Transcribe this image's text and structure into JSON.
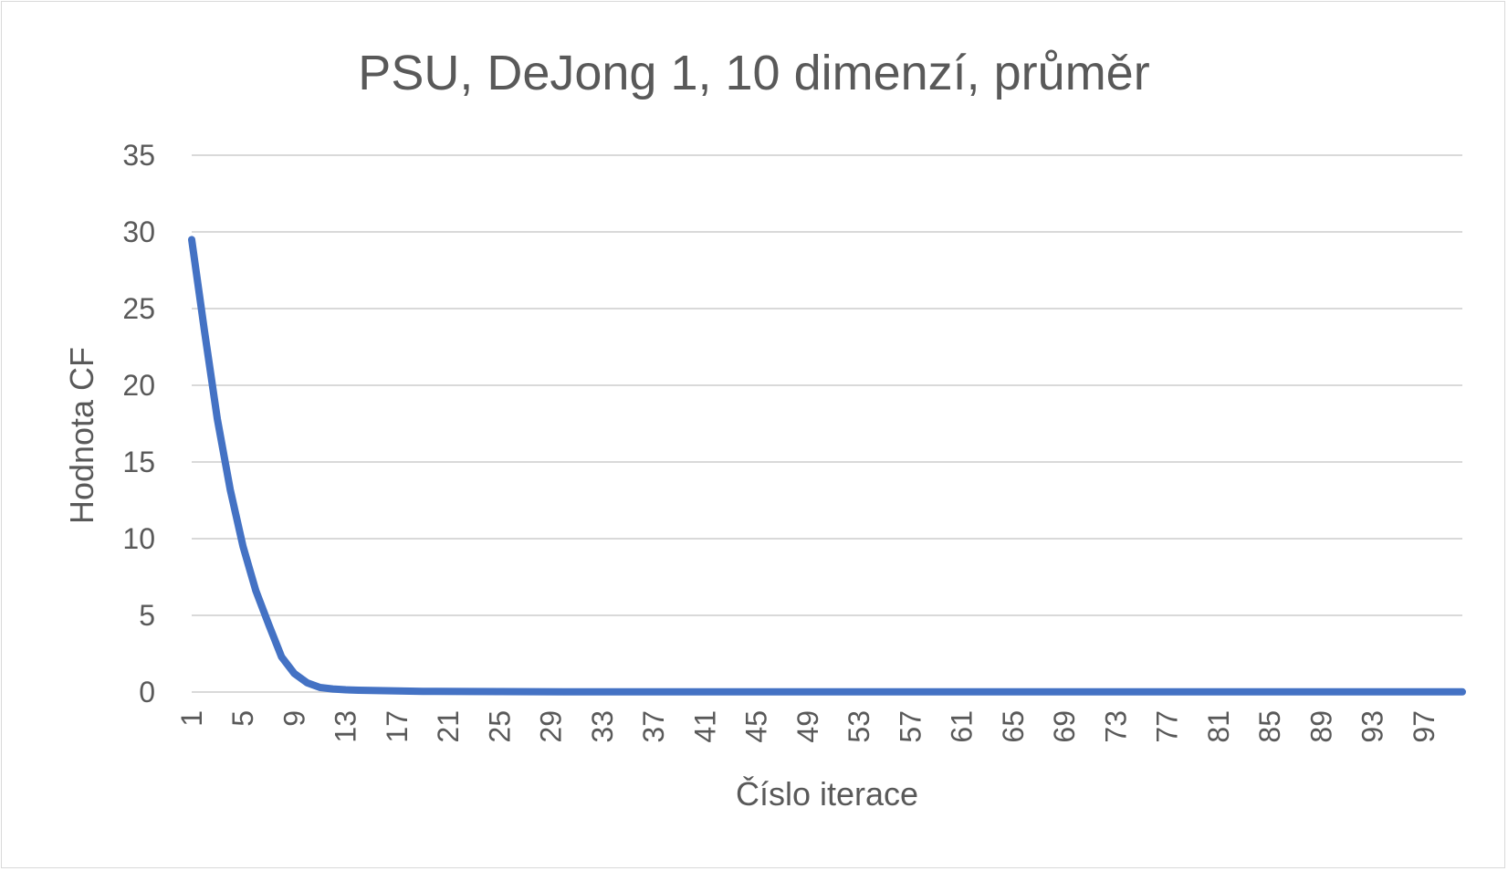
{
  "chart_data": {
    "type": "line",
    "title": "PSU, DeJong 1, 10 dimenzí, průměr",
    "xlabel": "Číslo iterace",
    "ylabel": "Hodnota CF",
    "ylim": [
      0,
      35
    ],
    "yticks": [
      0,
      5,
      10,
      15,
      20,
      25,
      30,
      35
    ],
    "grid": true,
    "legend": "none",
    "x_tick_labels": [
      "1",
      "5",
      "9",
      "13",
      "17",
      "21",
      "25",
      "29",
      "33",
      "37",
      "41",
      "45",
      "49",
      "53",
      "57",
      "61",
      "65",
      "69",
      "73",
      "77",
      "81",
      "85",
      "89",
      "93",
      "97"
    ],
    "x_tick_values": [
      1,
      5,
      9,
      13,
      17,
      21,
      25,
      29,
      33,
      37,
      41,
      45,
      49,
      53,
      57,
      61,
      65,
      69,
      73,
      77,
      81,
      85,
      89,
      93,
      97
    ],
    "x_range": [
      1,
      100
    ],
    "series": [
      {
        "color": "#4472c4",
        "x": [
          1,
          2,
          3,
          4,
          5,
          6,
          7,
          8,
          9,
          10,
          11,
          12,
          13,
          14,
          15,
          16,
          17,
          18,
          19,
          20,
          25,
          30,
          35,
          40,
          45,
          50,
          55,
          60,
          65,
          70,
          75,
          80,
          85,
          90,
          95,
          100
        ],
        "values": [
          29.5,
          23.5,
          17.8,
          13.2,
          9.5,
          6.6,
          4.4,
          2.3,
          1.2,
          0.6,
          0.3,
          0.2,
          0.15,
          0.12,
          0.1,
          0.09,
          0.08,
          0.06,
          0.05,
          0.04,
          0.03,
          0.02,
          0.02,
          0.01,
          0.01,
          0.01,
          0.01,
          0.01,
          0.01,
          0.01,
          0.01,
          0.01,
          0.01,
          0.01,
          0.01,
          0.01
        ]
      }
    ]
  }
}
